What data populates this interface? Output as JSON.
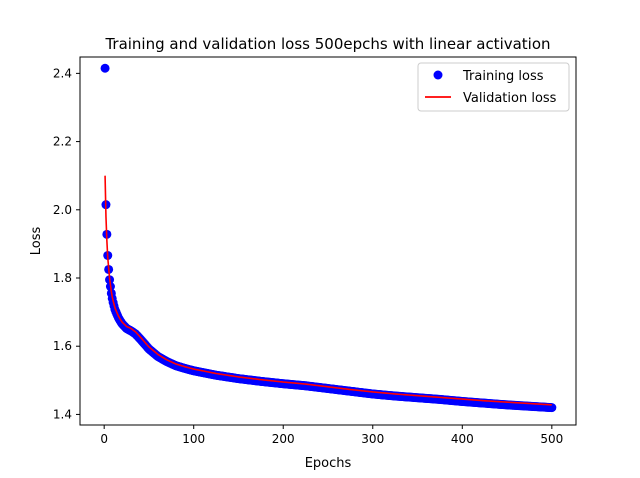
{
  "chart_data": {
    "type": "scatter",
    "title": "Training and validation loss 500epchs with linear activation",
    "xlabel": "Epochs",
    "ylabel": "Loss",
    "xlim": [
      -27,
      527
    ],
    "ylim": [
      1.369,
      2.448
    ],
    "xticks": [
      0,
      100,
      200,
      300,
      400,
      500
    ],
    "yticks": [
      1.4,
      1.6,
      1.8,
      2.0,
      2.2,
      2.4
    ],
    "ytick_labels": [
      "1.4",
      "1.6",
      "1.8",
      "2.0",
      "2.2",
      "2.4"
    ],
    "grid": false,
    "legend_position": "top-right",
    "series": [
      {
        "name": "Training loss",
        "style": "markers",
        "color": "#0000ff",
        "x": [
          1,
          2,
          3,
          4,
          5,
          6,
          7,
          8,
          9,
          10,
          12,
          14,
          16,
          18,
          20,
          25,
          30,
          35,
          40,
          45,
          50,
          60,
          70,
          80,
          90,
          100,
          125,
          150,
          175,
          200,
          225,
          250,
          275,
          300,
          325,
          350,
          375,
          400,
          425,
          450,
          475,
          500
        ],
        "y": [
          2.415,
          2.015,
          1.928,
          1.866,
          1.825,
          1.795,
          1.775,
          1.755,
          1.74,
          1.728,
          1.708,
          1.695,
          1.683,
          1.674,
          1.666,
          1.652,
          1.645,
          1.636,
          1.622,
          1.607,
          1.592,
          1.57,
          1.555,
          1.543,
          1.535,
          1.528,
          1.515,
          1.505,
          1.497,
          1.49,
          1.484,
          1.476,
          1.468,
          1.46,
          1.454,
          1.449,
          1.444,
          1.438,
          1.433,
          1.428,
          1.424,
          1.42
        ]
      },
      {
        "name": "Validation loss",
        "style": "line",
        "color": "#ff0000",
        "x": [
          1,
          2,
          3,
          4,
          5,
          6,
          7,
          8,
          9,
          10,
          12,
          14,
          16,
          18,
          20,
          25,
          30,
          35,
          40,
          45,
          50,
          60,
          70,
          80,
          90,
          100,
          125,
          150,
          175,
          200,
          225,
          250,
          275,
          300,
          325,
          350,
          375,
          400,
          425,
          450,
          475,
          500
        ],
        "y": [
          2.1,
          1.98,
          1.91,
          1.86,
          1.83,
          1.8,
          1.78,
          1.76,
          1.745,
          1.733,
          1.713,
          1.7,
          1.688,
          1.679,
          1.671,
          1.658,
          1.652,
          1.642,
          1.628,
          1.613,
          1.598,
          1.576,
          1.56,
          1.548,
          1.54,
          1.533,
          1.52,
          1.51,
          1.502,
          1.495,
          1.489,
          1.481,
          1.473,
          1.466,
          1.46,
          1.455,
          1.45,
          1.445,
          1.44,
          1.436,
          1.432,
          1.428
        ]
      }
    ]
  }
}
